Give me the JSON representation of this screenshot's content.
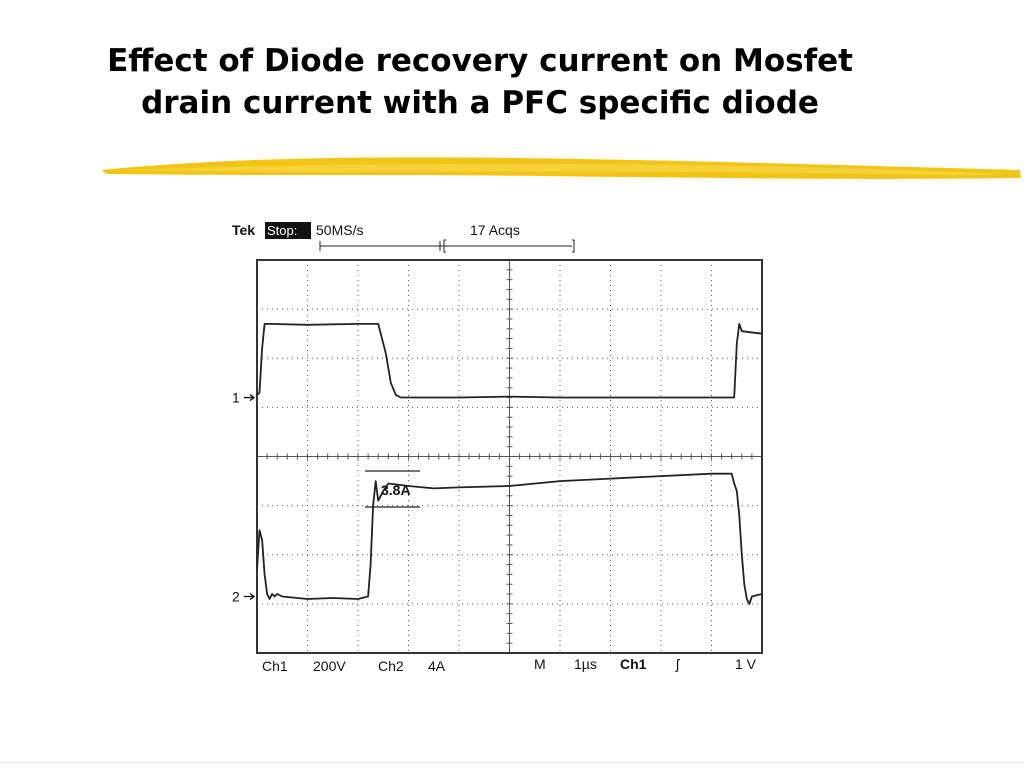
{
  "slide": {
    "title_line1": "Effect of Diode recovery current on Mosfet",
    "title_line2": "drain current with a PFC specific diode"
  },
  "colors": {
    "accent_stroke": "#f2c415",
    "accent_stroke_light": "#f7d84a",
    "trace": "#222222",
    "grid": "#555555"
  },
  "chart_data": {
    "type": "line",
    "title": "",
    "header": {
      "brand": "Tek",
      "state": "Stop:",
      "rate": "50MS/s",
      "acqs": "17 Acqs"
    },
    "footer": {
      "ch1": "Ch1",
      "ch1_scale": "200V",
      "ch2": "Ch2",
      "ch2_scale": "4A",
      "m": "M",
      "timebase": "1µs",
      "trig_src": "Ch1",
      "trig_slope": "ʃ",
      "trig_level": "1 V"
    },
    "grid": true,
    "x_divisions": 10,
    "y_divisions": 8,
    "xlim": [
      0,
      10
    ],
    "ylim": [
      -4,
      4
    ],
    "channel_markers": [
      {
        "label": "1",
        "ground_div": 1.2
      },
      {
        "label": "2",
        "ground_div": -2.85
      }
    ],
    "annotations": [
      {
        "text": "3.8A",
        "x": 3.3,
        "y": -0.35
      }
    ],
    "series": [
      {
        "x": [
          0,
          0.05,
          0.1,
          0.15,
          0.25,
          1.0,
          2.0,
          2.4,
          2.55,
          2.65,
          2.75,
          2.85,
          3.0,
          4.0,
          5.0,
          6.0,
          7.0,
          8.0,
          9.0,
          9.45,
          9.5,
          9.55,
          9.6,
          10.0
        ],
        "y": [
          1.25,
          1.3,
          2.2,
          2.7,
          2.7,
          2.68,
          2.7,
          2.7,
          2.1,
          1.5,
          1.25,
          1.2,
          1.2,
          1.2,
          1.22,
          1.2,
          1.2,
          1.2,
          1.2,
          1.2,
          2.3,
          2.7,
          2.55,
          2.5
        ]
      },
      {
        "x": [
          0,
          0.05,
          0.1,
          0.15,
          0.2,
          0.25,
          0.3,
          0.35,
          0.4,
          0.5,
          1.0,
          1.5,
          2.0,
          2.2,
          2.25,
          2.3,
          2.35,
          2.4,
          2.5,
          2.6,
          3.0,
          3.5,
          4.0,
          5.0,
          6.0,
          7.0,
          8.0,
          9.0,
          9.4,
          9.45,
          9.5,
          9.55,
          9.6,
          9.65,
          9.7,
          9.75,
          9.8,
          10.0
        ],
        "y": [
          -2.3,
          -1.5,
          -1.7,
          -2.4,
          -2.8,
          -2.9,
          -2.8,
          -2.85,
          -2.8,
          -2.85,
          -2.9,
          -2.88,
          -2.9,
          -2.85,
          -2.2,
          -1.0,
          -0.5,
          -0.9,
          -0.7,
          -0.55,
          -0.6,
          -0.65,
          -0.63,
          -0.6,
          -0.5,
          -0.45,
          -0.4,
          -0.35,
          -0.35,
          -0.55,
          -0.7,
          -1.2,
          -2.0,
          -2.6,
          -2.9,
          -3.0,
          -2.85,
          -2.8
        ]
      }
    ]
  }
}
